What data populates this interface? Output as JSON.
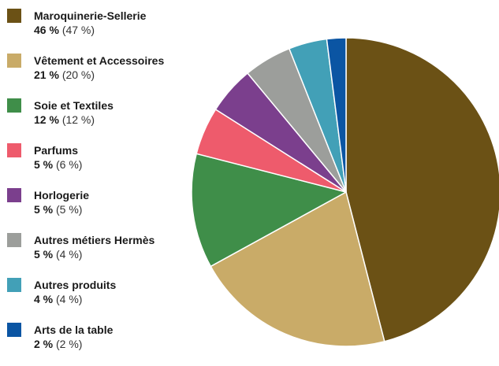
{
  "chart_data": {
    "type": "pie",
    "start_angle_deg": 0,
    "direction": "clockwise",
    "legend_position": "left",
    "slices": [
      {
        "label": "Maroquinerie-Sellerie",
        "value": 46,
        "value_text": "46 %",
        "previous_text": "(47 %)",
        "color": "#6b5115"
      },
      {
        "label": "Vêtement et Accessoires",
        "value": 21,
        "value_text": "21 %",
        "previous_text": "(20 %)",
        "color": "#c9ab68"
      },
      {
        "label": "Soie et Textiles",
        "value": 12,
        "value_text": "12 %",
        "previous_text": "(12 %)",
        "color": "#3f8e49"
      },
      {
        "label": "Parfums",
        "value": 5,
        "value_text": "5 %",
        "previous_text": "(6 %)",
        "color": "#ee5b6c"
      },
      {
        "label": "Horlogerie",
        "value": 5,
        "value_text": "5 %",
        "previous_text": "(5 %)",
        "color": "#7b3f8d"
      },
      {
        "label": "Autres métiers Hermès",
        "value": 5,
        "value_text": "5 %",
        "previous_text": "(4 %)",
        "color": "#9c9e9b"
      },
      {
        "label": "Autres produits",
        "value": 4,
        "value_text": "4 %",
        "previous_text": "(4 %)",
        "color": "#42a0b7"
      },
      {
        "label": "Arts de la table",
        "value": 2,
        "value_text": "2 %",
        "previous_text": "(2 %)",
        "color": "#0b55a3"
      }
    ]
  }
}
